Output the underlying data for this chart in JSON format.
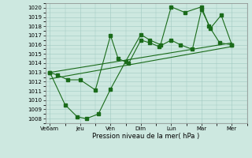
{
  "xlabel": "Pression niveau de la mer( hPa )",
  "background_color": "#cde8e0",
  "grid_color": "#a0c8c0",
  "line_color": "#1a6b1a",
  "ylim": [
    1007.5,
    1020.5
  ],
  "yticks": [
    1008,
    1009,
    1010,
    1011,
    1012,
    1013,
    1014,
    1015,
    1016,
    1017,
    1018,
    1019,
    1020
  ],
  "x_labels": [
    "Ve6am",
    "Jeu",
    "Ven",
    "Dim",
    "Lun",
    "Mar",
    "Mer"
  ],
  "x_positions": [
    0,
    1,
    2,
    3,
    4,
    5,
    6
  ],
  "xlim": [
    -0.15,
    6.5
  ],
  "line1_x": [
    0,
    0.25,
    0.6,
    1.0,
    1.5,
    2.0,
    2.25,
    2.6,
    3.0,
    3.3,
    3.6,
    4.0,
    4.3,
    4.7,
    5.0,
    5.3,
    5.65,
    6.0
  ],
  "line1_y": [
    1013.0,
    1012.7,
    1012.2,
    1012.2,
    1011.1,
    1017.0,
    1014.5,
    1014.0,
    1016.5,
    1016.2,
    1015.8,
    1016.5,
    1016.0,
    1015.5,
    1019.8,
    1017.8,
    1019.2,
    1016.0
  ],
  "line2_x": [
    0,
    0.5,
    0.9,
    1.2,
    1.6,
    2.0,
    2.5,
    3.0,
    3.3,
    3.65,
    4.0,
    4.45,
    5.0,
    5.25,
    5.6,
    6.0
  ],
  "line2_y": [
    1013.0,
    1009.5,
    1008.2,
    1008.0,
    1008.5,
    1011.2,
    1014.2,
    1017.1,
    1016.5,
    1016.0,
    1020.1,
    1019.5,
    1020.1,
    1018.0,
    1016.2,
    1016.0
  ],
  "trend1_x": [
    0,
    6
  ],
  "trend1_y": [
    1013.0,
    1016.2
  ],
  "trend2_x": [
    0,
    6
  ],
  "trend2_y": [
    1012.3,
    1015.8
  ]
}
